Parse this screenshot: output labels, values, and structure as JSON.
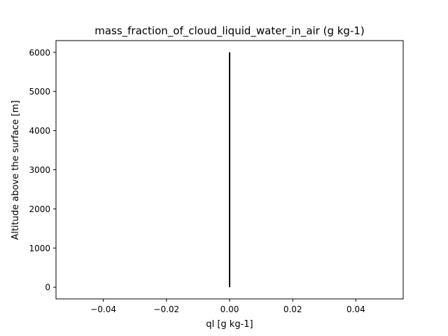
{
  "chart_data": {
    "type": "line",
    "title": "mass_fraction_of_cloud_liquid_water_in_air (g kg-1)",
    "xlabel": "ql [g kg-1]",
    "ylabel": "Altitude above the surface [m]",
    "xlim": [
      -0.055,
      0.055
    ],
    "ylim": [
      -300,
      6300
    ],
    "xticks": [
      -0.04,
      -0.02,
      0.0,
      0.02,
      0.04
    ],
    "xtick_labels": [
      "−0.04",
      "−0.02",
      "0.00",
      "0.02",
      "0.04"
    ],
    "yticks": [
      0,
      1000,
      2000,
      3000,
      4000,
      5000,
      6000
    ],
    "ytick_labels": [
      "0",
      "1000",
      "2000",
      "3000",
      "4000",
      "5000",
      "6000"
    ],
    "grid": false,
    "series": [
      {
        "color": "#000000",
        "x": [
          0.0,
          0.0
        ],
        "y": [
          0,
          6000
        ]
      }
    ]
  }
}
